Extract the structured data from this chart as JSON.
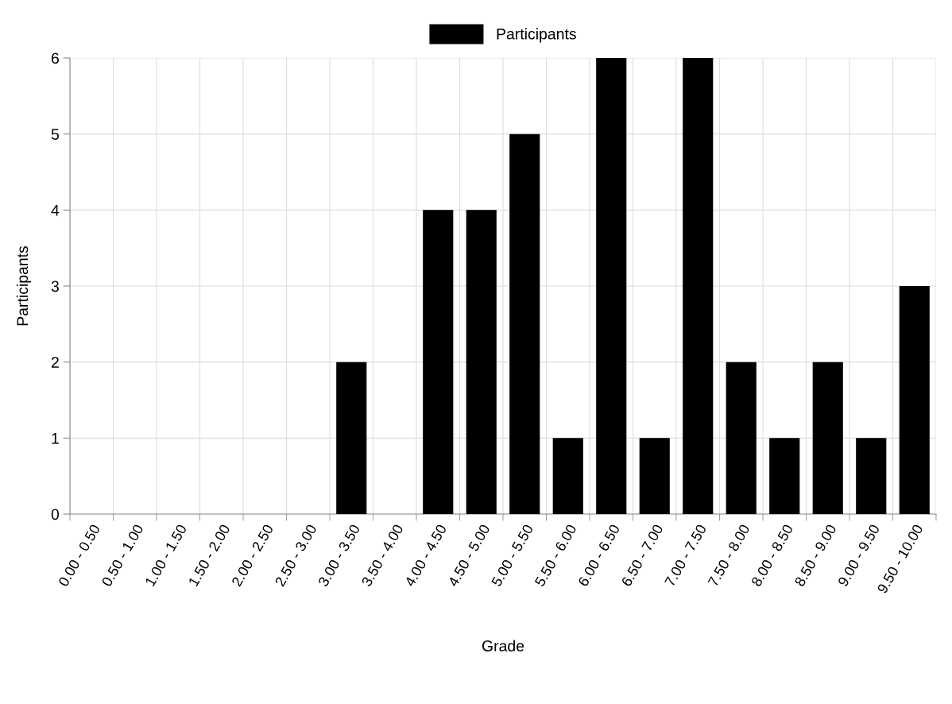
{
  "chart_data": {
    "type": "bar",
    "xlabel": "Grade",
    "ylabel": "Participants",
    "categories": [
      "0.00 - 0.50",
      "0.50 - 1.00",
      "1.00 - 1.50",
      "1.50 - 2.00",
      "2.00 - 2.50",
      "2.50 - 3.00",
      "3.00 - 3.50",
      "3.50 - 4.00",
      "4.00 - 4.50",
      "4.50 - 5.00",
      "5.00 - 5.50",
      "5.50 - 6.00",
      "6.00 - 6.50",
      "6.50 - 7.00",
      "7.00 - 7.50",
      "7.50 - 8.00",
      "8.00 - 8.50",
      "8.50 - 9.00",
      "9.00 - 9.50",
      "9.50 - 10.00"
    ],
    "series": [
      {
        "name": "Participants",
        "color": "#000000",
        "values": [
          0,
          0,
          0,
          0,
          0,
          0,
          2,
          0,
          4,
          4,
          5,
          1,
          6,
          1,
          6,
          2,
          1,
          2,
          1,
          3
        ]
      }
    ],
    "ylim": [
      0,
      6
    ],
    "yticks": [
      0,
      1,
      2,
      3,
      4,
      5,
      6
    ],
    "grid": true,
    "legend": "top"
  }
}
